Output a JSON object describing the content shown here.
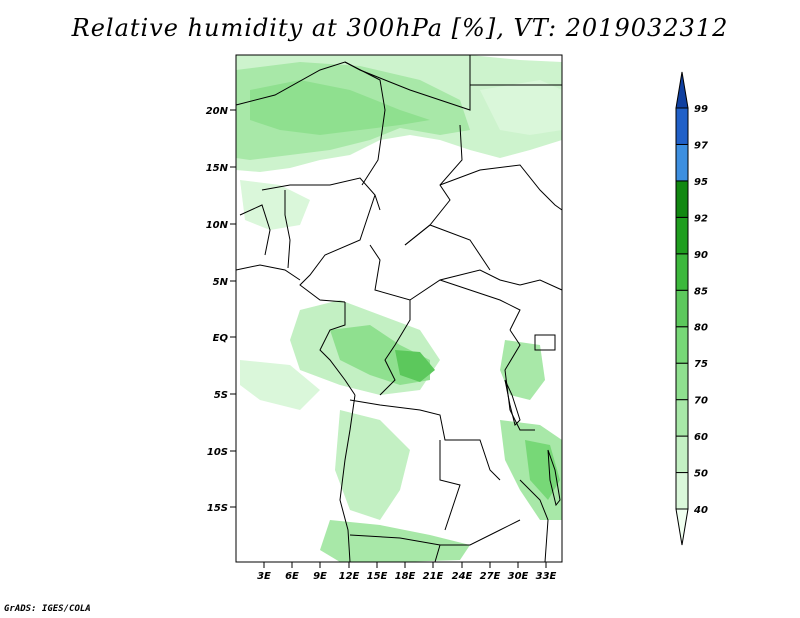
{
  "title": "Relative humidity at 300hPa [%], VT: 2019032312",
  "credit": "GrADS: IGES/COLA",
  "map": {
    "lat_labels": [
      "20N",
      "15N",
      "10N",
      "5N",
      "EQ",
      "5S",
      "10S",
      "15S"
    ],
    "lon_labels": [
      "3E",
      "6E",
      "9E",
      "12E",
      "15E",
      "18E",
      "21E",
      "24E",
      "27E",
      "30E",
      "33E"
    ]
  },
  "colorbar": {
    "levels": [
      "40",
      "50",
      "60",
      "70",
      "75",
      "80",
      "85",
      "90",
      "92",
      "95",
      "97",
      "99"
    ],
    "colors": [
      "#f0fff0",
      "#daf7da",
      "#c3f0c3",
      "#a8e8a8",
      "#8fe08f",
      "#77d877",
      "#5cc85c",
      "#3cb83c",
      "#1f9e1f",
      "#118811",
      "#3d8fe0",
      "#2060c8",
      "#1040a0"
    ]
  }
}
